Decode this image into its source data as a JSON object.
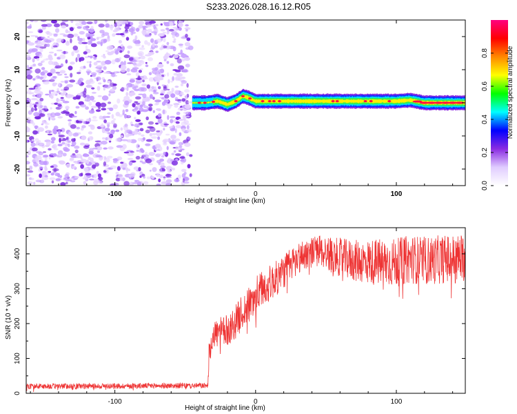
{
  "title": "S233.2026.028.16.12.R05",
  "colors": {
    "snr_line": "#ee3333",
    "axis": "#000000",
    "speckle_light": "#e6d2ff",
    "speckle_mid": "#c49cff",
    "speckle_dark": "#7a2be0"
  },
  "chart_data": [
    {
      "type": "heatmap",
      "name": "spectrogram",
      "xlabel": "Height of straight line (km)",
      "ylabel": "Frequency (Hz)",
      "xlim": [
        -163,
        149
      ],
      "ylim": [
        -25,
        25
      ],
      "xticks": [
        -100,
        0,
        100
      ],
      "yticks": [
        -20,
        -10,
        0,
        10,
        20
      ],
      "noise_region_x": [
        -163,
        -45
      ],
      "signal_band": {
        "x_start": -45,
        "x_end": 149,
        "center_hz": [
          [
            -45,
            0
          ],
          [
            -35,
            0
          ],
          [
            -27,
            0.5
          ],
          [
            -20,
            -0.5
          ],
          [
            -14,
            0.5
          ],
          [
            -9,
            2
          ],
          [
            -5,
            1.5
          ],
          [
            0,
            0.5
          ],
          [
            10,
            0.5
          ],
          [
            30,
            0.5
          ],
          [
            60,
            0.5
          ],
          [
            100,
            0.5
          ],
          [
            110,
            0.8
          ],
          [
            120,
            0
          ],
          [
            149,
            0
          ]
        ],
        "halfwidth_hz": 1.5
      },
      "colorbar": {
        "label": "Normalized spectral amplitude",
        "ticks": [
          0.0,
          0.2,
          0.4,
          0.6,
          0.8
        ],
        "tick_labels": [
          "0.0",
          "0.2",
          "0.4",
          "0.6",
          "0.8"
        ],
        "range": [
          0,
          1
        ],
        "colors": [
          "#ffffff",
          "#e0ccff",
          "#8a2be2",
          "#0000ff",
          "#00ffff",
          "#00ff00",
          "#ffff00",
          "#ff8800",
          "#ff0000",
          "#ff0080"
        ]
      }
    },
    {
      "type": "line",
      "name": "snr",
      "xlabel": "Height of straight line (km)",
      "ylabel": "SNR (10 * v/v)",
      "xlim": [
        -163,
        149
      ],
      "ylim": [
        0,
        475
      ],
      "xticks": [
        -100,
        0,
        100
      ],
      "yticks": [
        0,
        100,
        200,
        300,
        400
      ],
      "trend_points": [
        [
          -163,
          20
        ],
        [
          -34,
          22
        ],
        [
          -33,
          120
        ],
        [
          -30,
          170
        ],
        [
          -20,
          180
        ],
        [
          -15,
          200
        ],
        [
          -10,
          230
        ],
        [
          -5,
          250
        ],
        [
          0,
          280
        ],
        [
          5,
          300
        ],
        [
          15,
          330
        ],
        [
          25,
          370
        ],
        [
          35,
          400
        ],
        [
          45,
          410
        ],
        [
          55,
          395
        ],
        [
          70,
          380
        ],
        [
          90,
          375
        ],
        [
          100,
          375
        ],
        [
          110,
          385
        ],
        [
          120,
          380
        ],
        [
          135,
          385
        ],
        [
          149,
          390
        ]
      ],
      "noise_amplitude": [
        [
          -163,
          8
        ],
        [
          -34,
          8
        ],
        [
          -33,
          40
        ],
        [
          0,
          55
        ],
        [
          40,
          45
        ],
        [
          60,
          55
        ],
        [
          90,
          70
        ],
        [
          149,
          70
        ]
      ]
    }
  ]
}
